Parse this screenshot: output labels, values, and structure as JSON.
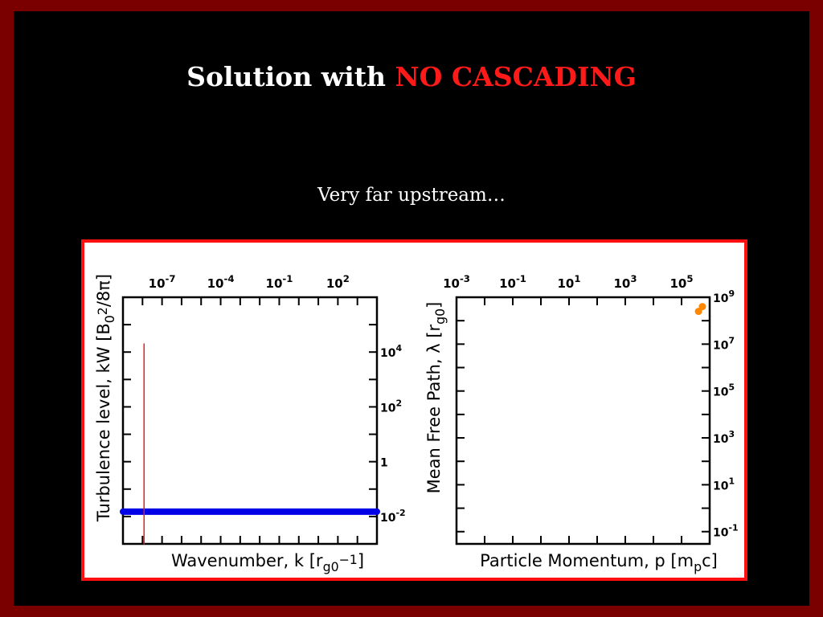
{
  "slide": {
    "title_main": "Solution with ",
    "title_highlight": "NO CASCADING",
    "subtitle": "Very far upstream…",
    "colors": {
      "frame": "#7a0000",
      "background": "#000000",
      "highlight": "#ff1a1a",
      "figure_border": "#ff1010"
    }
  },
  "chart_data": [
    {
      "type": "line",
      "xlabel": "Wavenumber, k [r_g0^-1]",
      "ylabel": "Turbulence level, kW [B_0^2/8π]",
      "x_scale": "log",
      "y_scale": "log",
      "xlim": [
        1e-09,
        10000.0
      ],
      "ylim": [
        0.001,
        1000000.0
      ],
      "x_ticks": [
        "10^-7",
        "10^-4",
        "10^-1",
        "10^2"
      ],
      "y_ticks": [
        "10^-2",
        "1",
        "10^2",
        "10^4"
      ],
      "series": [
        {
          "color": "#0000e6",
          "x": [
            1e-09,
            10000.0
          ],
          "y": [
            0.015,
            0.015
          ]
        },
        {
          "color": "#dd2222",
          "x": [
            1.2e-08,
            1.2e-08
          ],
          "y": [
            0.001,
            20000.0
          ]
        }
      ]
    },
    {
      "type": "scatter",
      "xlabel": "Particle Momentum, p [m_pc]",
      "ylabel": "Mean Free Path, λ [r_g0]",
      "x_scale": "log",
      "y_scale": "log",
      "xlim": [
        0.001,
        1000000.0
      ],
      "ylim": [
        0.03,
        1000000000.0
      ],
      "x_ticks": [
        "10^-3",
        "10^-1",
        "10^1",
        "10^3",
        "10^5"
      ],
      "y_ticks": [
        "10^-1",
        "10^1",
        "10^3",
        "10^5",
        "10^7",
        "10^9"
      ],
      "series": [
        {
          "color": "#ff8800",
          "x": [
            400000.0,
            550000.0
          ],
          "y": [
            250000000.0,
            400000000.0
          ]
        }
      ]
    }
  ]
}
